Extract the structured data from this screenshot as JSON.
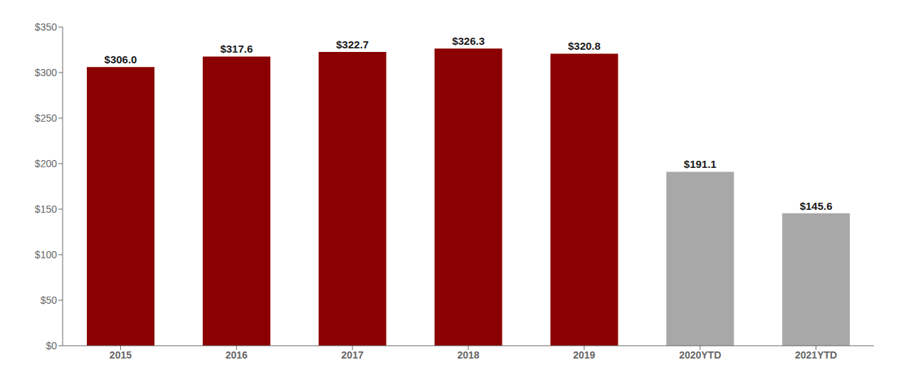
{
  "chart_data": {
    "type": "bar",
    "categories": [
      "2015",
      "2016",
      "2017",
      "2018",
      "2019",
      "2020YTD",
      "2021YTD"
    ],
    "values": [
      306.0,
      317.6,
      322.7,
      326.3,
      320.8,
      191.1,
      145.6
    ],
    "value_labels": [
      "$306.0",
      "$317.6",
      "$322.7",
      "$326.3",
      "$320.8",
      "$191.1",
      "$145.6"
    ],
    "data_labels": true,
    "colors": [
      "#8B0000",
      "#8B0000",
      "#8B0000",
      "#8B0000",
      "#8B0000",
      "#a8a8a8",
      "#a8a8a8"
    ],
    "ylim": [
      0,
      350
    ],
    "yticks": [
      {
        "value": 0,
        "label": "$0"
      },
      {
        "value": 50,
        "label": "$50"
      },
      {
        "value": 100,
        "label": "$100"
      },
      {
        "value": 150,
        "label": "$150"
      },
      {
        "value": 200,
        "label": "$200"
      },
      {
        "value": 250,
        "label": "$250"
      },
      {
        "value": 300,
        "label": "$300"
      },
      {
        "value": 350,
        "label": "$350"
      }
    ],
    "grid": false
  }
}
